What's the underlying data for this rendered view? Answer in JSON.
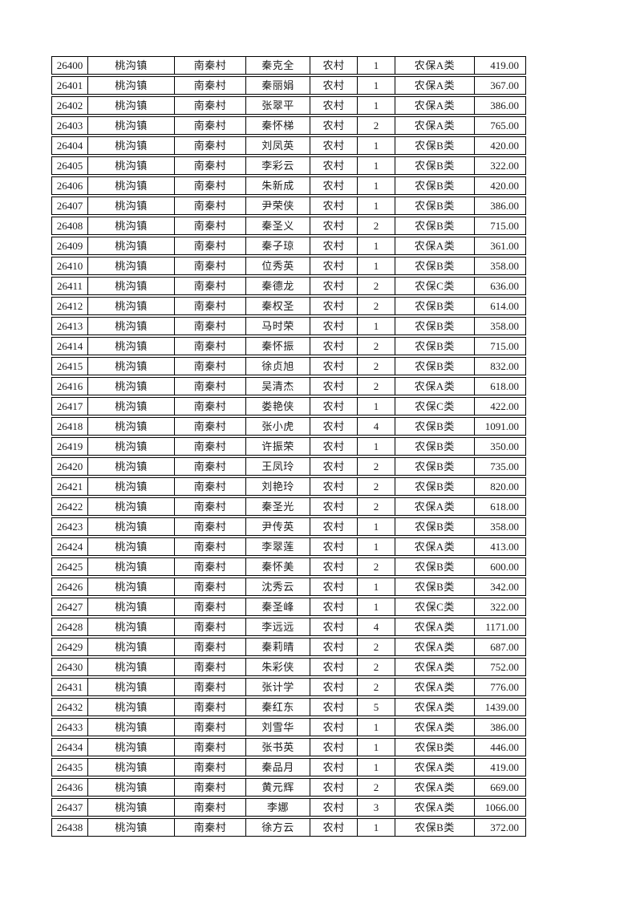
{
  "table": {
    "rows": [
      [
        "26400",
        "桃沟镇",
        "南秦村",
        "秦克全",
        "农村",
        "1",
        "农保A类",
        "419.00"
      ],
      [
        "26401",
        "桃沟镇",
        "南秦村",
        "秦丽娟",
        "农村",
        "1",
        "农保A类",
        "367.00"
      ],
      [
        "26402",
        "桃沟镇",
        "南秦村",
        "张翠平",
        "农村",
        "1",
        "农保A类",
        "386.00"
      ],
      [
        "26403",
        "桃沟镇",
        "南秦村",
        "秦怀梯",
        "农村",
        "2",
        "农保A类",
        "765.00"
      ],
      [
        "26404",
        "桃沟镇",
        "南秦村",
        "刘凤英",
        "农村",
        "1",
        "农保B类",
        "420.00"
      ],
      [
        "26405",
        "桃沟镇",
        "南秦村",
        "李彩云",
        "农村",
        "1",
        "农保B类",
        "322.00"
      ],
      [
        "26406",
        "桃沟镇",
        "南秦村",
        "朱新成",
        "农村",
        "1",
        "农保B类",
        "420.00"
      ],
      [
        "26407",
        "桃沟镇",
        "南秦村",
        "尹荣侠",
        "农村",
        "1",
        "农保B类",
        "386.00"
      ],
      [
        "26408",
        "桃沟镇",
        "南秦村",
        "秦圣义",
        "农村",
        "2",
        "农保B类",
        "715.00"
      ],
      [
        "26409",
        "桃沟镇",
        "南秦村",
        "秦子琼",
        "农村",
        "1",
        "农保A类",
        "361.00"
      ],
      [
        "26410",
        "桃沟镇",
        "南秦村",
        "位秀英",
        "农村",
        "1",
        "农保B类",
        "358.00"
      ],
      [
        "26411",
        "桃沟镇",
        "南秦村",
        "秦德龙",
        "农村",
        "2",
        "农保C类",
        "636.00"
      ],
      [
        "26412",
        "桃沟镇",
        "南秦村",
        "秦权圣",
        "农村",
        "2",
        "农保B类",
        "614.00"
      ],
      [
        "26413",
        "桃沟镇",
        "南秦村",
        "马时荣",
        "农村",
        "1",
        "农保B类",
        "358.00"
      ],
      [
        "26414",
        "桃沟镇",
        "南秦村",
        "秦怀振",
        "农村",
        "2",
        "农保B类",
        "715.00"
      ],
      [
        "26415",
        "桃沟镇",
        "南秦村",
        "徐贞旭",
        "农村",
        "2",
        "农保B类",
        "832.00"
      ],
      [
        "26416",
        "桃沟镇",
        "南秦村",
        "吴清杰",
        "农村",
        "2",
        "农保A类",
        "618.00"
      ],
      [
        "26417",
        "桃沟镇",
        "南秦村",
        "娄艳侠",
        "农村",
        "1",
        "农保C类",
        "422.00"
      ],
      [
        "26418",
        "桃沟镇",
        "南秦村",
        "张小虎",
        "农村",
        "4",
        "农保B类",
        "1091.00"
      ],
      [
        "26419",
        "桃沟镇",
        "南秦村",
        "许振荣",
        "农村",
        "1",
        "农保B类",
        "350.00"
      ],
      [
        "26420",
        "桃沟镇",
        "南秦村",
        "王凤玲",
        "农村",
        "2",
        "农保B类",
        "735.00"
      ],
      [
        "26421",
        "桃沟镇",
        "南秦村",
        "刘艳玲",
        "农村",
        "2",
        "农保B类",
        "820.00"
      ],
      [
        "26422",
        "桃沟镇",
        "南秦村",
        "秦圣光",
        "农村",
        "2",
        "农保A类",
        "618.00"
      ],
      [
        "26423",
        "桃沟镇",
        "南秦村",
        "尹传英",
        "农村",
        "1",
        "农保B类",
        "358.00"
      ],
      [
        "26424",
        "桃沟镇",
        "南秦村",
        "李翠莲",
        "农村",
        "1",
        "农保A类",
        "413.00"
      ],
      [
        "26425",
        "桃沟镇",
        "南秦村",
        "秦怀美",
        "农村",
        "2",
        "农保B类",
        "600.00"
      ],
      [
        "26426",
        "桃沟镇",
        "南秦村",
        "沈秀云",
        "农村",
        "1",
        "农保B类",
        "342.00"
      ],
      [
        "26427",
        "桃沟镇",
        "南秦村",
        "秦圣峰",
        "农村",
        "1",
        "农保C类",
        "322.00"
      ],
      [
        "26428",
        "桃沟镇",
        "南秦村",
        "李远远",
        "农村",
        "4",
        "农保A类",
        "1171.00"
      ],
      [
        "26429",
        "桃沟镇",
        "南秦村",
        "秦莉晴",
        "农村",
        "2",
        "农保A类",
        "687.00"
      ],
      [
        "26430",
        "桃沟镇",
        "南秦村",
        "朱彩侠",
        "农村",
        "2",
        "农保A类",
        "752.00"
      ],
      [
        "26431",
        "桃沟镇",
        "南秦村",
        "张计学",
        "农村",
        "2",
        "农保A类",
        "776.00"
      ],
      [
        "26432",
        "桃沟镇",
        "南秦村",
        "秦红东",
        "农村",
        "5",
        "农保A类",
        "1439.00"
      ],
      [
        "26433",
        "桃沟镇",
        "南秦村",
        "刘雪华",
        "农村",
        "1",
        "农保A类",
        "386.00"
      ],
      [
        "26434",
        "桃沟镇",
        "南秦村",
        "张书英",
        "农村",
        "1",
        "农保B类",
        "446.00"
      ],
      [
        "26435",
        "桃沟镇",
        "南秦村",
        "秦品月",
        "农村",
        "1",
        "农保A类",
        "419.00"
      ],
      [
        "26436",
        "桃沟镇",
        "南秦村",
        "黄元辉",
        "农村",
        "2",
        "农保A类",
        "669.00"
      ],
      [
        "26437",
        "桃沟镇",
        "南秦村",
        "李娜",
        "农村",
        "3",
        "农保A类",
        "1066.00"
      ],
      [
        "26438",
        "桃沟镇",
        "南秦村",
        "徐方云",
        "农村",
        "1",
        "农保B类",
        "372.00"
      ]
    ]
  }
}
